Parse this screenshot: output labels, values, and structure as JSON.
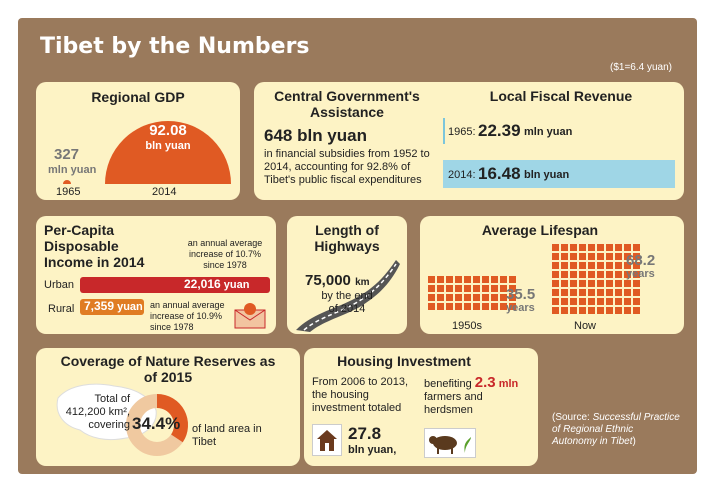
{
  "title": "Tibet by the Numbers",
  "exchange_rate": "($1=6.4 yuan)",
  "gdp": {
    "heading": "Regional GDP",
    "v1965_value": "327",
    "v1965_unit": "mln yuan",
    "v2014_value": "92.08",
    "v2014_unit": "bln yuan",
    "year1": "1965",
    "year2": "2014"
  },
  "assistance": {
    "heading": "Central Government's Assistance",
    "value": "648 bln yuan",
    "desc": "in financial subsidies from 1952 to 2014, accounting for 92.8% of Tibet's public fiscal expenditures"
  },
  "fiscal": {
    "heading": "Local Fiscal Revenue",
    "r1_year": "1965:",
    "r1_value": "22.39",
    "r1_unit": "mln yuan",
    "r2_year": "2014:",
    "r2_value": "16.48",
    "r2_unit": "bln yuan"
  },
  "income": {
    "heading": "Per-Capita Disposable Income in 2014",
    "urban_label": "Urban",
    "urban_value": "22,016",
    "urban_unit": "yuan",
    "urban_note": "an annual average increase of 10.7% since 1978",
    "rural_label": "Rural",
    "rural_value": "7,359",
    "rural_unit": "yuan",
    "rural_note": "an annual average increase of 10.9% since 1978",
    "urban_amount": 22016,
    "rural_amount": 7359
  },
  "highways": {
    "heading": "Length of Highways",
    "value": "75,000",
    "unit": "km",
    "desc": "by the end of 2014"
  },
  "lifespan": {
    "heading": "Average Lifespan",
    "v1950": "35.5",
    "v1950_unit": "years",
    "vnow": "68.2",
    "vnow_unit": "years",
    "label1": "1950s",
    "label2": "Now"
  },
  "reserves": {
    "heading": "Coverage of Nature Reserves as of 2015",
    "total_text": "Total of 412,200 km², covering",
    "percent": "34.4%",
    "percent_value": 34.4,
    "suffix": "of land area in Tibet"
  },
  "housing": {
    "heading": "Housing Investment",
    "left_text": "From 2006 to 2013, the housing investment totaled",
    "amount": "27.8",
    "amount_unit": "bln yuan,",
    "benefit_pre": "benefiting",
    "benefit_value": "2.3",
    "benefit_unit": "mln",
    "benefit_post": "farmers and herdsmen"
  },
  "source": {
    "prefix": "(Source:",
    "title": "Successful Practice of Regional Ethnic Autonomy in Tibet",
    "suffix": ")"
  },
  "colors": {
    "background": "#9a7a5c",
    "card": "#fdf3c5",
    "orange": "#e05a23",
    "blue": "#2f78a8",
    "red": "#c8282a"
  }
}
